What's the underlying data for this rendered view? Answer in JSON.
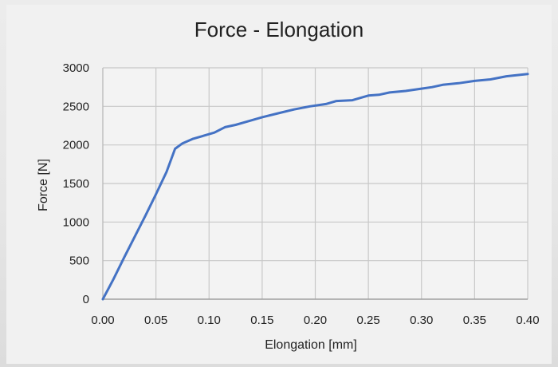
{
  "chart_data": {
    "type": "line",
    "title": "Force - Elongation",
    "xlabel": "Elongation [mm]",
    "ylabel": "Force [N]",
    "xlim": [
      0,
      0.4
    ],
    "ylim": [
      0,
      3000
    ],
    "x_ticks": [
      "0.00",
      "0.05",
      "0.10",
      "0.15",
      "0.20",
      "0.25",
      "0.30",
      "0.35",
      "0.40"
    ],
    "y_ticks": [
      "0",
      "500",
      "1000",
      "1500",
      "2000",
      "2500",
      "3000"
    ],
    "grid": true,
    "legend": "none",
    "colors": {
      "line": "#4472c4",
      "grid": "#c8c8c8"
    },
    "series": [
      {
        "x": [
          0.0,
          0.005,
          0.01,
          0.02,
          0.03,
          0.04,
          0.05,
          0.06,
          0.068,
          0.075,
          0.085,
          0.095,
          0.105,
          0.115,
          0.125,
          0.135,
          0.15,
          0.165,
          0.18,
          0.195,
          0.21,
          0.22,
          0.235,
          0.25,
          0.26,
          0.27,
          0.285,
          0.3,
          0.31,
          0.32,
          0.335,
          0.35,
          0.365,
          0.38,
          0.4
        ],
        "y": [
          0,
          130,
          260,
          540,
          810,
          1080,
          1360,
          1650,
          1950,
          2020,
          2080,
          2120,
          2160,
          2230,
          2260,
          2300,
          2360,
          2410,
          2460,
          2500,
          2530,
          2570,
          2580,
          2640,
          2650,
          2680,
          2700,
          2730,
          2750,
          2780,
          2800,
          2830,
          2850,
          2890,
          2920
        ]
      }
    ]
  }
}
